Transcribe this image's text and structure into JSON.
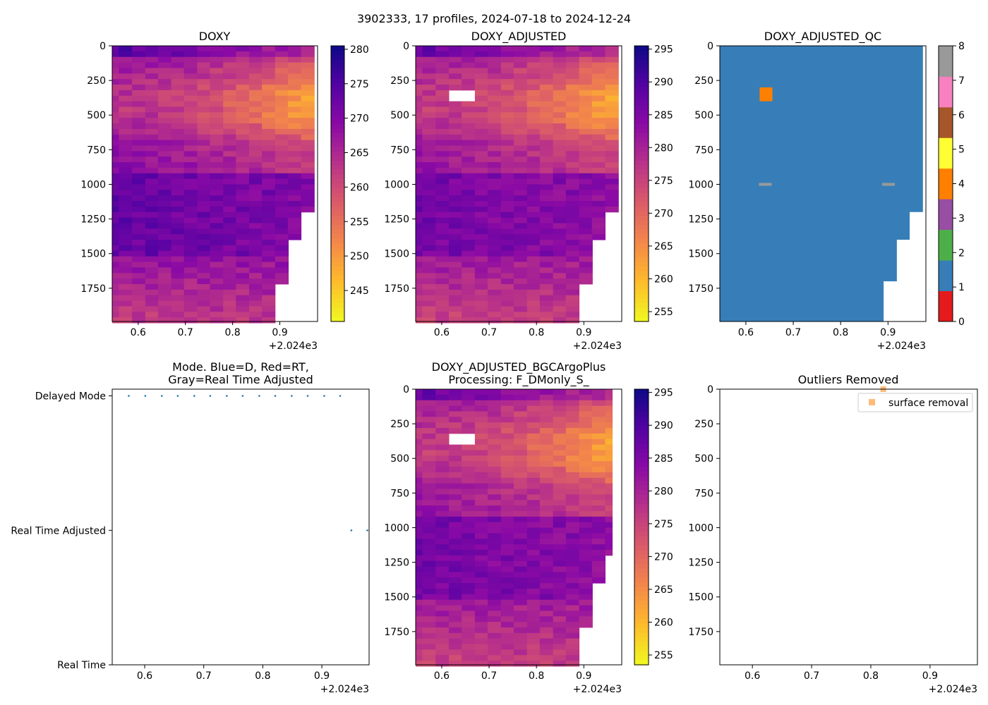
{
  "figure": {
    "suptitle": "3902333, 17 profiles, 2024-07-18 to 2024-12-24"
  },
  "chart_data": [
    {
      "id": "doxy",
      "type": "heatmap",
      "title": "DOXY",
      "x_ticks": [
        "0.6",
        "0.7",
        "0.8",
        "0.9"
      ],
      "x_tick_values": [
        0.6,
        0.7,
        0.8,
        0.9
      ],
      "x_offset_label": "+2.024e3",
      "xlim": [
        0.545,
        0.98
      ],
      "y_ticks": [
        "0",
        "250",
        "500",
        "750",
        "1000",
        "1250",
        "1500",
        "1750"
      ],
      "y_tick_values": [
        0,
        250,
        500,
        750,
        1000,
        1250,
        1500,
        1750
      ],
      "ylim": [
        1990,
        0
      ],
      "colormap": "plasma_r",
      "colorbar": {
        "range": [
          240.5,
          280.5
        ],
        "ticks": [
          "245",
          "250",
          "255",
          "260",
          "265",
          "270",
          "275",
          "280"
        ],
        "tick_values": [
          245,
          250,
          255,
          260,
          265,
          270,
          275,
          280
        ]
      },
      "profile_x": [
        0.556,
        0.573,
        0.601,
        0.629,
        0.656,
        0.684,
        0.711,
        0.739,
        0.766,
        0.794,
        0.821,
        0.849,
        0.876,
        0.904,
        0.931,
        0.959
      ],
      "profile_max_depth": [
        1990,
        1990,
        1990,
        1990,
        1990,
        1990,
        1990,
        1990,
        1990,
        1990,
        1990,
        1990,
        1990,
        1700,
        1400,
        1200
      ],
      "missing_depth_band": 1000,
      "value_profile_surface_to_deep": {
        "early_profiles": [
          278,
          268,
          266,
          268,
          272,
          274,
          270
        ],
        "late_profiles": [
          266,
          258,
          248,
          252,
          262,
          270,
          268
        ]
      }
    },
    {
      "id": "doxy_adjusted",
      "type": "heatmap",
      "title": "DOXY_ADJUSTED",
      "x_ticks": [
        "0.6",
        "0.7",
        "0.8",
        "0.9"
      ],
      "x_tick_values": [
        0.6,
        0.7,
        0.8,
        0.9
      ],
      "x_offset_label": "+2.024e3",
      "xlim": [
        0.545,
        0.98
      ],
      "y_ticks": [
        "0",
        "250",
        "500",
        "750",
        "1000",
        "1250",
        "1500",
        "1750"
      ],
      "y_tick_values": [
        0,
        250,
        500,
        750,
        1000,
        1250,
        1500,
        1750
      ],
      "ylim": [
        1990,
        0
      ],
      "colormap": "plasma_r",
      "colorbar": {
        "range": [
          253.5,
          295.5
        ],
        "ticks": [
          "255",
          "260",
          "265",
          "270",
          "275",
          "280",
          "285",
          "290",
          "295"
        ],
        "tick_values": [
          255,
          260,
          265,
          270,
          275,
          280,
          285,
          290,
          295
        ]
      },
      "removed_block": {
        "x": [
          0.629,
          0.656
        ],
        "depth": [
          300,
          400
        ]
      },
      "missing_depth_band": 1000
    },
    {
      "id": "doxy_adjusted_qc",
      "type": "heatmap",
      "title": "DOXY_ADJUSTED_QC",
      "x_ticks": [
        "0.6",
        "0.7",
        "0.8",
        "0.9"
      ],
      "x_tick_values": [
        0.6,
        0.7,
        0.8,
        0.9
      ],
      "x_offset_label": "+2.024e3",
      "xlim": [
        0.545,
        0.98
      ],
      "y_ticks": [
        "0",
        "250",
        "500",
        "750",
        "1000",
        "1250",
        "1500",
        "1750"
      ],
      "y_tick_values": [
        0,
        250,
        500,
        750,
        1000,
        1250,
        1500,
        1750
      ],
      "ylim": [
        1990,
        0
      ],
      "dominant_flag": 1,
      "flag_4_block": {
        "x": [
          0.629,
          0.656
        ],
        "depth": [
          300,
          400
        ]
      },
      "flag_8_marks": [
        {
          "x": 0.641,
          "depth": 1000
        },
        {
          "x": 0.901,
          "depth": 1000
        }
      ],
      "colorbar": {
        "range": [
          0,
          8
        ],
        "ticks": [
          "0",
          "1",
          "2",
          "3",
          "4",
          "5",
          "6",
          "7",
          "8"
        ],
        "tick_values": [
          0,
          1,
          2,
          3,
          4,
          5,
          6,
          7,
          8
        ],
        "flag_colors": [
          "#e41a1c",
          "#377eb8",
          "#4daf4a",
          "#984ea3",
          "#ff7f00",
          "#ffff33",
          "#a65628",
          "#f781bf",
          "#999999"
        ]
      }
    },
    {
      "id": "mode",
      "type": "scatter",
      "title_line1": "Mode. Blue=D, Red=RT,",
      "title_line2": "Gray=Real Time Adjusted",
      "x_ticks": [
        "0.6",
        "0.7",
        "0.8",
        "0.9"
      ],
      "x_tick_values": [
        0.6,
        0.7,
        0.8,
        0.9
      ],
      "x_offset_label": "+2.024e3",
      "xlim": [
        0.545,
        0.98
      ],
      "y_ticks": [
        "Delayed Mode",
        "Real Time Adjusted",
        "Real Time"
      ],
      "y_tick_values": [
        2,
        1,
        0
      ],
      "ylim": [
        0,
        2.05
      ],
      "series": [
        {
          "name": "Delayed Mode",
          "y": 2,
          "x": [
            0.573,
            0.601,
            0.629,
            0.656,
            0.684,
            0.711,
            0.739,
            0.766,
            0.794,
            0.821,
            0.849,
            0.876,
            0.904,
            0.931
          ]
        },
        {
          "name": "Real Time Adjusted",
          "y": 1,
          "x": [
            0.95,
            0.977
          ]
        }
      ]
    },
    {
      "id": "bgcargoplus",
      "type": "heatmap",
      "title_line1": "DOXY_ADJUSTED_BGCArgoPlus",
      "title_line2": "Processing: F_DMonly_S_",
      "x_ticks": [
        "0.6",
        "0.7",
        "0.8",
        "0.9"
      ],
      "x_tick_values": [
        0.6,
        0.7,
        0.8,
        0.9
      ],
      "x_offset_label": "+2.024e3",
      "xlim": [
        0.545,
        0.98
      ],
      "y_ticks": [
        "0",
        "250",
        "500",
        "750",
        "1000",
        "1250",
        "1500",
        "1750"
      ],
      "y_tick_values": [
        0,
        250,
        500,
        750,
        1000,
        1250,
        1500,
        1750
      ],
      "ylim": [
        1990,
        0
      ],
      "colormap": "plasma_r",
      "colorbar": {
        "range": [
          253.5,
          295.5
        ],
        "ticks": [
          "255",
          "260",
          "265",
          "270",
          "275",
          "280",
          "285",
          "290",
          "295"
        ],
        "tick_values": [
          255,
          260,
          265,
          270,
          275,
          280,
          285,
          290,
          295
        ]
      },
      "removed_block": {
        "x": [
          0.629,
          0.656
        ],
        "depth": [
          300,
          400
        ]
      },
      "missing_depth_band": 1000
    },
    {
      "id": "outliers",
      "type": "scatter",
      "title": "Outliers Removed",
      "x_ticks": [
        "0.6",
        "0.7",
        "0.8",
        "0.9"
      ],
      "x_tick_values": [
        0.6,
        0.7,
        0.8,
        0.9
      ],
      "x_offset_label": "+2.024e3",
      "xlim": [
        0.545,
        0.98
      ],
      "y_ticks": [
        "0",
        "250",
        "500",
        "750",
        "1000",
        "1250",
        "1500",
        "1750"
      ],
      "y_tick_values": [
        0,
        250,
        500,
        750,
        1000,
        1250,
        1500,
        1750
      ],
      "ylim": [
        1990,
        0
      ],
      "legend": {
        "label": "surface removal",
        "placement": "top-right",
        "color": "#ffbb78"
      },
      "series": [
        {
          "name": "surface removal",
          "points": [
            {
              "x": 0.821,
              "depth": 0
            }
          ]
        }
      ]
    }
  ]
}
